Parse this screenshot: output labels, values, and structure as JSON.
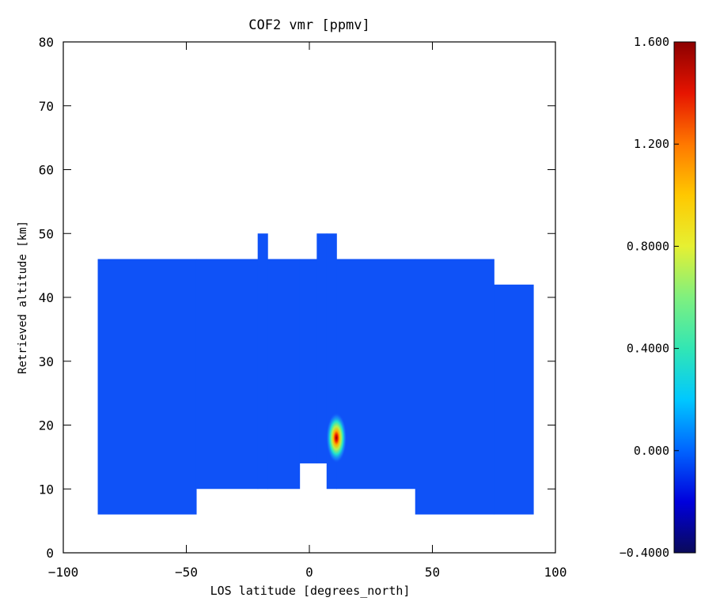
{
  "chart_data": {
    "type": "heatmap",
    "title": "COF2 vmr [ppmv]",
    "xlabel": "LOS latitude [degrees_north]",
    "ylabel": "Retrieved altitude [km]",
    "xlim": [
      -100,
      100
    ],
    "ylim": [
      0,
      80
    ],
    "x_ticks": [
      "-100",
      "-50",
      "0",
      "50",
      "100"
    ],
    "y_ticks": [
      "0",
      "10",
      "20",
      "30",
      "40",
      "50",
      "60",
      "70",
      "80"
    ],
    "grid": false,
    "fill_value": 0.07,
    "fill_color": "#0f52f7",
    "coverage_top": [
      {
        "x0": -86,
        "x1": -21,
        "top": 46
      },
      {
        "x0": -21,
        "x1": -17,
        "top": 50
      },
      {
        "x0": -17,
        "x1": 3,
        "top": 46
      },
      {
        "x0": 3,
        "x1": 11,
        "top": 50
      },
      {
        "x0": 11,
        "x1": 75,
        "top": 46
      },
      {
        "x0": 75,
        "x1": 91,
        "top": 42
      }
    ],
    "coverage_bottom": [
      {
        "x0": -86,
        "x1": -46,
        "bottom": 6
      },
      {
        "x0": -46,
        "x1": -4,
        "bottom": 10
      },
      {
        "x0": -4,
        "x1": 7,
        "bottom": 14
      },
      {
        "x0": 7,
        "x1": 43,
        "bottom": 10
      },
      {
        "x0": 43,
        "x1": 91,
        "bottom": 6
      }
    ],
    "hotspot": {
      "lat": 11,
      "alt": 18,
      "peak_value": 1.6
    },
    "colorbar": {
      "range": [
        -0.4,
        1.6
      ],
      "ticks": [
        {
          "value": -0.4,
          "label": "-0.4000"
        },
        {
          "value": 0.0,
          "label": "0.000"
        },
        {
          "value": 0.4,
          "label": "0.4000"
        },
        {
          "value": 0.8,
          "label": "0.8000"
        },
        {
          "value": 1.2,
          "label": "1.200"
        },
        {
          "value": 1.6,
          "label": "1.600"
        }
      ],
      "colors": [
        "#0a0a5a",
        "#0000dc",
        "#0064ff",
        "#00c8ff",
        "#32e6b4",
        "#7ff07f",
        "#e6f032",
        "#ffc800",
        "#ff7800",
        "#e61400",
        "#8c0000"
      ]
    }
  }
}
